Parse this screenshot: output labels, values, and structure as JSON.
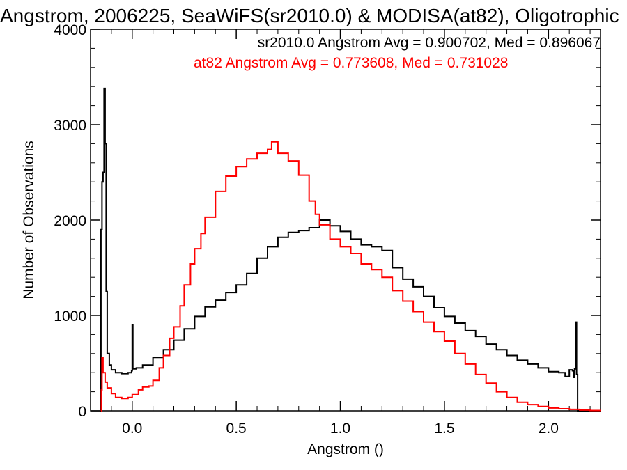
{
  "chart_data": {
    "type": "line",
    "title": "Angstrom, 2006225, SeaWiFS(sr2010.0) & MODISA(at82), Oligotrophic",
    "xlabel": "Angstrom ()",
    "ylabel": "Number of Observations",
    "xlim": [
      -0.2,
      2.25
    ],
    "ylim": [
      0,
      4000
    ],
    "x_ticks": [
      0.0,
      0.5,
      1.0,
      1.5,
      2.0
    ],
    "x_tick_labels": [
      "0.0",
      "0.5",
      "1.0",
      "1.5",
      "2.0"
    ],
    "y_ticks": [
      0,
      1000,
      2000,
      3000,
      4000
    ],
    "y_tick_labels": [
      "0",
      "1000",
      "2000",
      "3000",
      "4000"
    ],
    "grid": false,
    "series": [
      {
        "name": "sr2010.0",
        "color": "#000000",
        "annotation": "sr2010.0 Angstrom Avg = 0.900702, Med = 0.896067",
        "points": [
          [
            -0.155,
            0
          ],
          [
            -0.15,
            1900
          ],
          [
            -0.145,
            2400
          ],
          [
            -0.14,
            2500
          ],
          [
            -0.135,
            3380
          ],
          [
            -0.13,
            2800
          ],
          [
            -0.125,
            1250
          ],
          [
            -0.12,
            600
          ],
          [
            -0.11,
            480
          ],
          [
            -0.1,
            430
          ],
          [
            -0.08,
            400
          ],
          [
            -0.05,
            390
          ],
          [
            -0.02,
            400
          ],
          [
            -0.003,
            420
          ],
          [
            0.0,
            900
          ],
          [
            0.003,
            440
          ],
          [
            0.02,
            450
          ],
          [
            0.05,
            480
          ],
          [
            0.1,
            560
          ],
          [
            0.15,
            640
          ],
          [
            0.2,
            740
          ],
          [
            0.25,
            860
          ],
          [
            0.3,
            990
          ],
          [
            0.35,
            1090
          ],
          [
            0.4,
            1160
          ],
          [
            0.45,
            1240
          ],
          [
            0.5,
            1320
          ],
          [
            0.55,
            1440
          ],
          [
            0.6,
            1600
          ],
          [
            0.65,
            1720
          ],
          [
            0.7,
            1820
          ],
          [
            0.75,
            1870
          ],
          [
            0.8,
            1890
          ],
          [
            0.85,
            1920
          ],
          [
            0.9,
            2000
          ],
          [
            0.95,
            1940
          ],
          [
            1.0,
            1880
          ],
          [
            1.05,
            1800
          ],
          [
            1.1,
            1740
          ],
          [
            1.15,
            1720
          ],
          [
            1.2,
            1680
          ],
          [
            1.25,
            1500
          ],
          [
            1.3,
            1380
          ],
          [
            1.35,
            1300
          ],
          [
            1.4,
            1200
          ],
          [
            1.45,
            1080
          ],
          [
            1.5,
            990
          ],
          [
            1.55,
            920
          ],
          [
            1.6,
            840
          ],
          [
            1.65,
            780
          ],
          [
            1.7,
            700
          ],
          [
            1.75,
            640
          ],
          [
            1.8,
            580
          ],
          [
            1.85,
            530
          ],
          [
            1.9,
            490
          ],
          [
            1.95,
            450
          ],
          [
            2.0,
            410
          ],
          [
            2.05,
            400
          ],
          [
            2.08,
            360
          ],
          [
            2.1,
            430
          ],
          [
            2.115,
            420
          ],
          [
            2.12,
            350
          ],
          [
            2.125,
            440
          ],
          [
            2.13,
            930
          ],
          [
            2.135,
            380
          ],
          [
            2.14,
            0
          ],
          [
            2.25,
            0
          ]
        ]
      },
      {
        "name": "at82",
        "color": "#ff0000",
        "annotation": "at82 Angstrom Avg = 0.773608, Med = 0.731028",
        "points": [
          [
            -0.15,
            0
          ],
          [
            -0.148,
            220
          ],
          [
            -0.145,
            560
          ],
          [
            -0.14,
            400
          ],
          [
            -0.13,
            300
          ],
          [
            -0.12,
            240
          ],
          [
            -0.1,
            180
          ],
          [
            -0.08,
            140
          ],
          [
            -0.05,
            130
          ],
          [
            -0.02,
            140
          ],
          [
            0.0,
            170
          ],
          [
            0.03,
            220
          ],
          [
            0.05,
            250
          ],
          [
            0.08,
            260
          ],
          [
            0.1,
            320
          ],
          [
            0.13,
            450
          ],
          [
            0.15,
            580
          ],
          [
            0.18,
            760
          ],
          [
            0.2,
            880
          ],
          [
            0.23,
            1100
          ],
          [
            0.25,
            1320
          ],
          [
            0.28,
            1540
          ],
          [
            0.3,
            1700
          ],
          [
            0.33,
            1860
          ],
          [
            0.35,
            2030
          ],
          [
            0.4,
            2300
          ],
          [
            0.45,
            2460
          ],
          [
            0.5,
            2560
          ],
          [
            0.55,
            2640
          ],
          [
            0.6,
            2700
          ],
          [
            0.65,
            2740
          ],
          [
            0.67,
            2820
          ],
          [
            0.7,
            2700
          ],
          [
            0.75,
            2620
          ],
          [
            0.8,
            2470
          ],
          [
            0.85,
            2200
          ],
          [
            0.88,
            2060
          ],
          [
            0.9,
            1950
          ],
          [
            0.95,
            1800
          ],
          [
            1.0,
            1720
          ],
          [
            1.05,
            1650
          ],
          [
            1.1,
            1540
          ],
          [
            1.15,
            1480
          ],
          [
            1.2,
            1400
          ],
          [
            1.25,
            1260
          ],
          [
            1.3,
            1150
          ],
          [
            1.35,
            1040
          ],
          [
            1.4,
            930
          ],
          [
            1.45,
            830
          ],
          [
            1.5,
            730
          ],
          [
            1.55,
            600
          ],
          [
            1.6,
            490
          ],
          [
            1.65,
            380
          ],
          [
            1.7,
            290
          ],
          [
            1.75,
            200
          ],
          [
            1.8,
            140
          ],
          [
            1.85,
            90
          ],
          [
            1.9,
            65
          ],
          [
            1.95,
            45
          ],
          [
            2.0,
            30
          ],
          [
            2.05,
            22
          ],
          [
            2.1,
            15
          ],
          [
            2.15,
            8
          ],
          [
            2.2,
            4
          ],
          [
            2.25,
            2
          ]
        ]
      }
    ]
  }
}
